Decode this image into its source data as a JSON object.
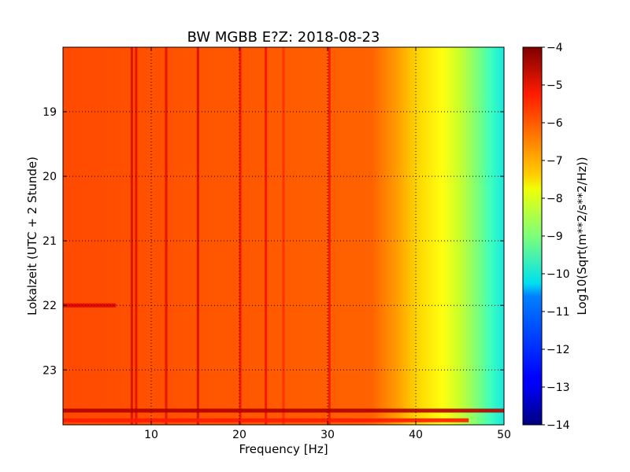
{
  "chart_data": {
    "type": "heatmap",
    "title": "BW MGBB E?Z: 2018-08-23",
    "xlabel": "Frequency [Hz]",
    "ylabel": "Lokalzeit (UTC + 2 Stunde)",
    "xlim": [
      0,
      50
    ],
    "ylim": [
      23.85,
      18.0
    ],
    "x_ticks": [
      10,
      20,
      30,
      40,
      50
    ],
    "y_ticks": [
      19,
      20,
      21,
      22,
      23
    ],
    "grid": true,
    "colorbar": {
      "label": "Log10(Sqrt(m**2/s**2/Hz))",
      "min": -14,
      "max": -4,
      "ticks": [
        -4,
        -5,
        -6,
        -7,
        -8,
        -9,
        -10,
        -11,
        -12,
        -13,
        -14
      ],
      "colormap": "jet"
    },
    "spectrum_profile": [
      {
        "freq": 0,
        "value": -5.8
      },
      {
        "freq": 10,
        "value": -5.7
      },
      {
        "freq": 20,
        "value": -5.8
      },
      {
        "freq": 30,
        "value": -6.0
      },
      {
        "freq": 35,
        "value": -6.2
      },
      {
        "freq": 38,
        "value": -6.5
      },
      {
        "freq": 40,
        "value": -7.0
      },
      {
        "freq": 42,
        "value": -7.6
      },
      {
        "freq": 44,
        "value": -8.2
      },
      {
        "freq": 46,
        "value": -8.8
      },
      {
        "freq": 48,
        "value": -9.3
      },
      {
        "freq": 50,
        "value": -9.8
      }
    ],
    "vertical_lines": [
      {
        "freq": 7.8,
        "value": -4.8
      },
      {
        "freq": 8.3,
        "value": -5.0
      },
      {
        "freq": 11.7,
        "value": -5.0
      },
      {
        "freq": 15.3,
        "value": -4.8
      },
      {
        "freq": 20.1,
        "value": -5.2
      },
      {
        "freq": 23.0,
        "value": -5.2
      },
      {
        "freq": 25.0,
        "value": -5.6
      },
      {
        "freq": 30.2,
        "value": -5.2
      }
    ],
    "horizontal_bands": [
      {
        "time": 22.0,
        "freq_max": 6,
        "value": -5.0
      },
      {
        "time": 23.63,
        "freq_max": 50,
        "value": -4.5
      },
      {
        "time": 23.78,
        "freq_max": 46,
        "value": -5.5
      }
    ]
  }
}
